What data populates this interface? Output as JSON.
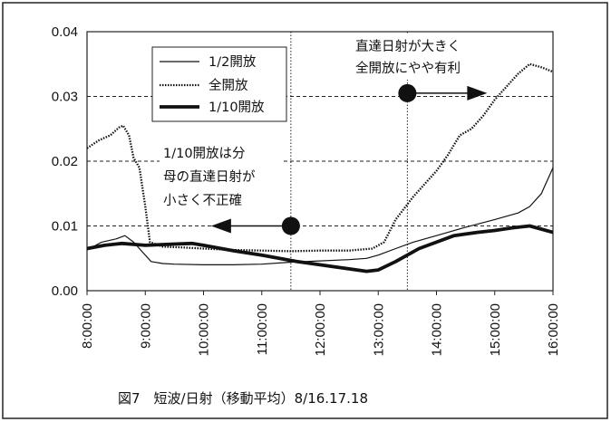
{
  "caption": "図7　短波/日射（移動平均）8/16.17.18",
  "chart_data": {
    "type": "line",
    "xlabel": "",
    "ylabel": "",
    "ylim": [
      0,
      0.04
    ],
    "y_ticks": [
      "0.00",
      "0.01",
      "0.02",
      "0.03",
      "0.04"
    ],
    "x_ticks": [
      "8:00:00",
      "9:00:00",
      "10:00:00",
      "11:00:00",
      "12:00:00",
      "13:00:00",
      "14:00:00",
      "15:00:00",
      "16:00:00"
    ],
    "x_range_hours": [
      8,
      16
    ],
    "grid": "horizontal dashed",
    "legend_position": "top-left",
    "series": [
      {
        "name": "1/2開放",
        "style": "thin",
        "color": "#111111",
        "points": [
          [
            8.0,
            0.0063
          ],
          [
            8.25,
            0.0075
          ],
          [
            8.5,
            0.008
          ],
          [
            8.65,
            0.0085
          ],
          [
            8.8,
            0.0075
          ],
          [
            8.95,
            0.006
          ],
          [
            9.1,
            0.0045
          ],
          [
            9.3,
            0.0042
          ],
          [
            9.5,
            0.0041
          ],
          [
            10.0,
            0.004
          ],
          [
            10.5,
            0.004
          ],
          [
            11.0,
            0.0041
          ],
          [
            11.5,
            0.0044
          ],
          [
            12.0,
            0.0046
          ],
          [
            12.5,
            0.0048
          ],
          [
            12.8,
            0.005
          ],
          [
            13.0,
            0.0055
          ],
          [
            13.3,
            0.0065
          ],
          [
            13.6,
            0.0075
          ],
          [
            14.0,
            0.0085
          ],
          [
            14.5,
            0.0098
          ],
          [
            15.0,
            0.011
          ],
          [
            15.4,
            0.012
          ],
          [
            15.6,
            0.013
          ],
          [
            15.8,
            0.015
          ],
          [
            16.0,
            0.019
          ]
        ]
      },
      {
        "name": "全開放",
        "style": "dotted",
        "color": "#111111",
        "points": [
          [
            8.0,
            0.022
          ],
          [
            8.2,
            0.0232
          ],
          [
            8.4,
            0.024
          ],
          [
            8.55,
            0.0252
          ],
          [
            8.62,
            0.0255
          ],
          [
            8.72,
            0.024
          ],
          [
            8.8,
            0.0205
          ],
          [
            8.9,
            0.019
          ],
          [
            9.0,
            0.013
          ],
          [
            9.08,
            0.0075
          ],
          [
            9.3,
            0.0068
          ],
          [
            9.6,
            0.0067
          ],
          [
            10.0,
            0.0065
          ],
          [
            10.5,
            0.0063
          ],
          [
            11.0,
            0.0062
          ],
          [
            11.5,
            0.0061
          ],
          [
            12.0,
            0.0062
          ],
          [
            12.5,
            0.0062
          ],
          [
            12.9,
            0.0065
          ],
          [
            13.1,
            0.0075
          ],
          [
            13.3,
            0.011
          ],
          [
            13.6,
            0.0145
          ],
          [
            14.0,
            0.0185
          ],
          [
            14.2,
            0.021
          ],
          [
            14.4,
            0.024
          ],
          [
            14.6,
            0.025
          ],
          [
            14.8,
            0.027
          ],
          [
            15.0,
            0.0295
          ],
          [
            15.2,
            0.0315
          ],
          [
            15.4,
            0.0335
          ],
          [
            15.6,
            0.035
          ],
          [
            15.8,
            0.0345
          ],
          [
            16.0,
            0.0338
          ]
        ]
      },
      {
        "name": "1/10開放",
        "style": "thick",
        "color": "#111111",
        "points": [
          [
            8.0,
            0.0065
          ],
          [
            8.3,
            0.007
          ],
          [
            8.6,
            0.0073
          ],
          [
            9.0,
            0.007
          ],
          [
            9.5,
            0.0072
          ],
          [
            9.8,
            0.0073
          ],
          [
            10.0,
            0.007
          ],
          [
            10.5,
            0.0062
          ],
          [
            11.0,
            0.0055
          ],
          [
            11.3,
            0.005
          ],
          [
            11.6,
            0.0045
          ],
          [
            12.0,
            0.004
          ],
          [
            12.4,
            0.0035
          ],
          [
            12.8,
            0.003
          ],
          [
            13.0,
            0.0032
          ],
          [
            13.3,
            0.0045
          ],
          [
            13.7,
            0.0065
          ],
          [
            14.0,
            0.0075
          ],
          [
            14.3,
            0.0085
          ],
          [
            14.7,
            0.009
          ],
          [
            15.0,
            0.0093
          ],
          [
            15.3,
            0.0097
          ],
          [
            15.6,
            0.01
          ],
          [
            16.0,
            0.009
          ]
        ]
      }
    ],
    "vertical_markers": [
      11.5,
      13.5
    ],
    "annotations": [
      {
        "id": "left",
        "lines": [
          "1/10開放は分",
          "母の直達日射が",
          "小さく不正確"
        ],
        "marker_x": 11.5,
        "marker_y": 0.01,
        "arrow": "left"
      },
      {
        "id": "right",
        "lines": [
          "直達日射が大きく",
          "全開放にやや有利"
        ],
        "marker_x": 13.5,
        "marker_y": 0.0305,
        "arrow": "right"
      }
    ]
  }
}
